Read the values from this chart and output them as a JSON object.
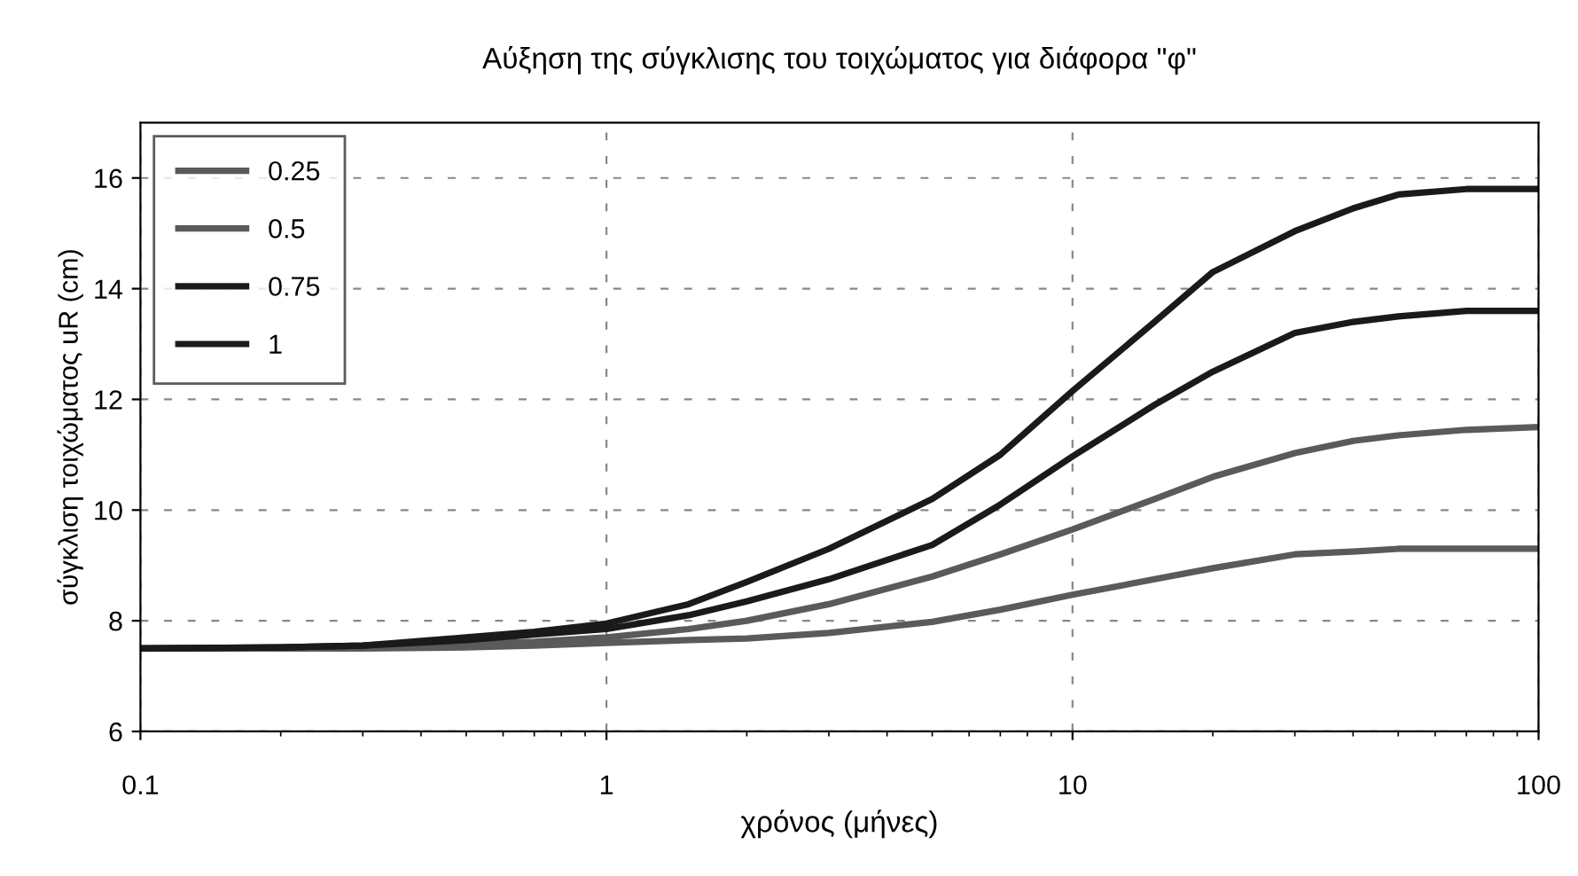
{
  "chart_data": {
    "type": "line",
    "title": "Αύξηση της σύγκλισης του τοιχώματος για διάφορα \"φ\"",
    "xlabel": "χρόνος (μήνες)",
    "ylabel": "σύγκλιση τοιχώματος uR (cm)",
    "x": [
      0.1,
      0.2,
      0.3,
      0.5,
      0.7,
      1,
      1.5,
      2,
      3,
      5,
      7,
      10,
      15,
      20,
      30,
      40,
      50,
      70,
      100
    ],
    "series": [
      {
        "name": "0.25",
        "color": "#5a5a5a",
        "values": [
          7.5,
          7.5,
          7.5,
          7.52,
          7.55,
          7.6,
          7.65,
          7.68,
          7.78,
          7.98,
          8.2,
          8.47,
          8.75,
          8.95,
          9.2,
          9.25,
          9.3,
          9.3,
          9.3
        ]
      },
      {
        "name": "0.5",
        "color": "#5a5a5a",
        "values": [
          7.5,
          7.5,
          7.52,
          7.58,
          7.62,
          7.7,
          7.85,
          8.0,
          8.3,
          8.8,
          9.2,
          9.65,
          10.2,
          10.6,
          11.03,
          11.25,
          11.35,
          11.45,
          11.5
        ]
      },
      {
        "name": "0.75",
        "color": "#1a1a1a",
        "values": [
          7.5,
          7.52,
          7.55,
          7.65,
          7.75,
          7.85,
          8.1,
          8.35,
          8.75,
          9.37,
          10.1,
          10.97,
          11.9,
          12.5,
          13.2,
          13.4,
          13.5,
          13.6,
          13.6
        ]
      },
      {
        "name": "1",
        "color": "#1a1a1a",
        "values": [
          7.5,
          7.52,
          7.55,
          7.7,
          7.8,
          7.95,
          8.3,
          8.7,
          9.3,
          10.2,
          11.0,
          12.15,
          13.4,
          14.3,
          15.04,
          15.45,
          15.7,
          15.8,
          15.8
        ]
      }
    ],
    "log": "x",
    "xlim": [
      0.1,
      100
    ],
    "xticks": [
      0.1,
      1,
      10,
      100
    ],
    "ylim": [
      6,
      17
    ],
    "yticks": [
      6,
      8,
      10,
      12,
      14,
      16
    ],
    "grid": true,
    "legend": "top left",
    "line_style": "solid",
    "marker": "none"
  }
}
